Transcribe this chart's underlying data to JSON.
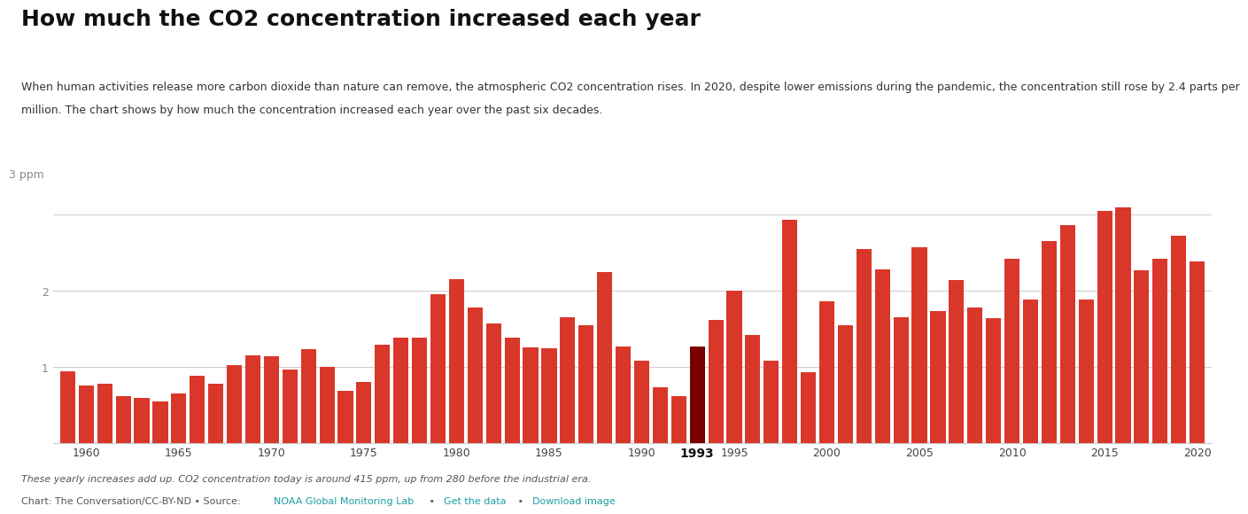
{
  "title": "How much the CO2 concentration increased each year",
  "subtitle1": "When human activities release more carbon dioxide than nature can remove, the atmospheric CO2 concentration rises. In 2020, despite lower emissions during the pandemic, the concentration still rose by 2.4 parts per",
  "subtitle2": "million. The chart shows by how much the concentration increased each year over the past six decades.",
  "footer_italic": "These yearly increases add up. CO2 concentration today is around 415 ppm, up from 280 before the industrial era.",
  "footer_normal": "Chart: The Conversation/CC-BY-ND • Source: ",
  "footer_link1": "NOAA Global Monitoring Lab",
  "footer_sep1": " • ",
  "footer_link2": "Get the data",
  "footer_sep2": " • ",
  "footer_link3": "Download image",
  "years": [
    1959,
    1960,
    1961,
    1962,
    1963,
    1964,
    1965,
    1966,
    1967,
    1968,
    1969,
    1970,
    1971,
    1972,
    1973,
    1974,
    1975,
    1976,
    1977,
    1978,
    1979,
    1980,
    1981,
    1982,
    1983,
    1984,
    1985,
    1986,
    1987,
    1988,
    1989,
    1990,
    1991,
    1992,
    1993,
    1994,
    1995,
    1996,
    1997,
    1998,
    1999,
    2000,
    2001,
    2002,
    2003,
    2004,
    2005,
    2006,
    2007,
    2008,
    2009,
    2010,
    2011,
    2012,
    2013,
    2014,
    2015,
    2016,
    2017,
    2018,
    2019,
    2020
  ],
  "values": [
    0.94,
    0.75,
    0.78,
    0.62,
    0.59,
    0.55,
    0.65,
    0.88,
    0.78,
    1.02,
    1.15,
    1.14,
    0.97,
    1.23,
    1.0,
    0.68,
    0.8,
    1.29,
    1.38,
    1.38,
    1.95,
    2.15,
    1.78,
    1.57,
    1.38,
    1.25,
    1.24,
    1.65,
    1.55,
    2.25,
    1.27,
    1.08,
    0.73,
    0.61,
    1.27,
    1.62,
    2.0,
    1.42,
    1.08,
    2.93,
    0.93,
    1.86,
    1.55,
    2.55,
    2.28,
    1.65,
    2.57,
    1.73,
    2.14,
    1.78,
    1.64,
    2.42,
    1.88,
    2.65,
    2.86,
    1.88,
    3.05,
    3.09,
    2.27,
    2.42,
    2.72,
    2.38
  ],
  "highlight_year": 1993,
  "bar_color": "#d9372a",
  "highlight_color": "#7a0000",
  "background_color": "#ffffff",
  "grid_color": "#cccccc",
  "yticks": [
    1,
    2,
    3
  ],
  "ylim": [
    0,
    3.4
  ],
  "xtick_years": [
    1960,
    1965,
    1970,
    1975,
    1980,
    1985,
    1990,
    1993,
    1995,
    2000,
    2005,
    2010,
    2015,
    2020
  ],
  "title_fontsize": 18,
  "subtitle_fontsize": 9,
  "tick_fontsize": 9,
  "link_color": "#1a9fa5",
  "footer_text_color": "#555555"
}
